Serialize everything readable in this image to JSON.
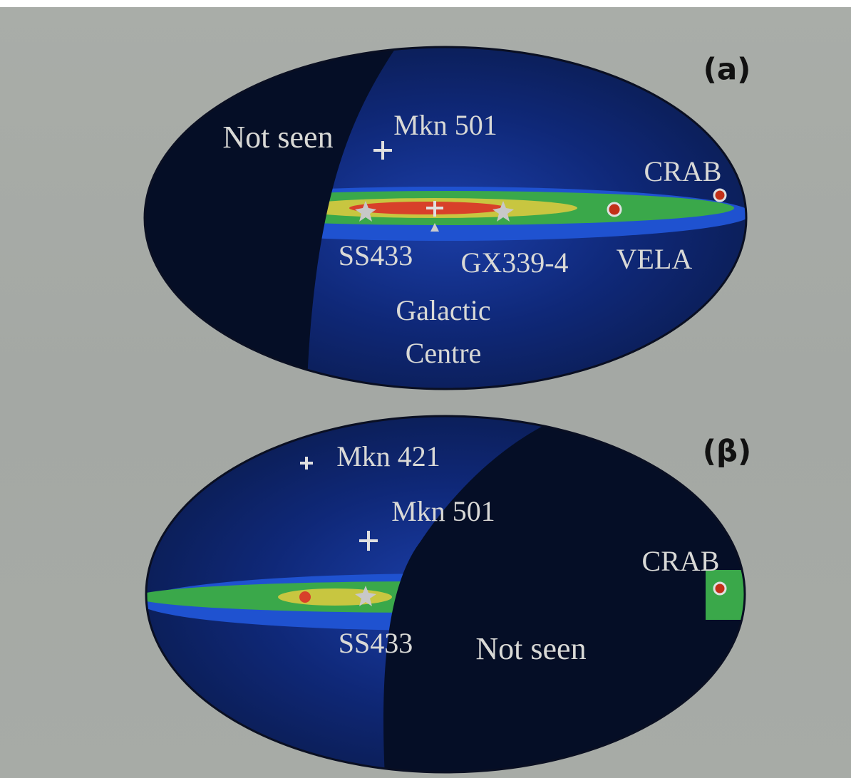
{
  "panels": [
    {
      "label": "(a)",
      "annotations": [
        "Not seen",
        "Mkn 501",
        "CRAB",
        "SS433",
        "GX339-4",
        "VELA",
        "Galactic",
        "Centre"
      ]
    },
    {
      "label": "(β)",
      "annotations": [
        "Mkn 421",
        "Mkn 501",
        "CRAB",
        "SS433",
        "Not seen"
      ]
    }
  ]
}
